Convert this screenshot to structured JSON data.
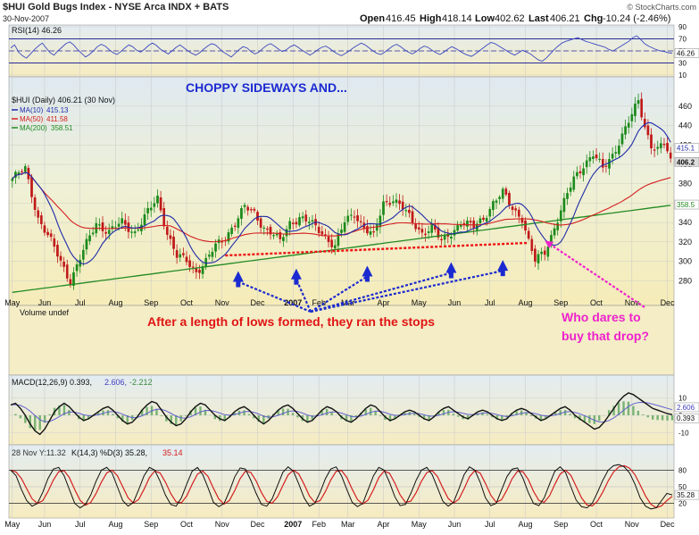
{
  "header": {
    "title": "$HUI Gold Bugs Index - NYSE Arca  INDX + BATS",
    "date": "30-Nov-2007",
    "open_label": "Open",
    "open": "416.45",
    "high_label": "High",
    "high": "418.14",
    "low_label": "Low",
    "low": "402.62",
    "last_label": "Last",
    "last": "406.21",
    "chg_label": "Chg",
    "chg": "-10.24 (-2.46%)",
    "watermark": "© StockCharts.com"
  },
  "colors": {
    "price_bg": "#f3f0c8",
    "panel_bg": "#f4f0d0",
    "ma10": "#1e2aa8",
    "ma50": "#d42020",
    "ma200": "#228b22",
    "up_candle": "#1a8a1a",
    "down_candle": "#c01818",
    "annotation_blue": "#1b2ad0",
    "annotation_red": "#e01414",
    "annotation_magenta": "#ee22cc",
    "support_line": "#ee1111"
  },
  "annotations": {
    "choppy": "CHOPPY SIDEWAYS AND...",
    "stops": "After a length of lows formed,  they ran the stops",
    "dares_line1": "Who dares to",
    "dares_line2": "buy that drop?"
  },
  "chart_data": [
    {
      "type": "line",
      "panel": "rsi",
      "label": "RSI(14) 46.26",
      "ylim": [
        10,
        90
      ],
      "yticks": [
        10,
        30,
        50,
        70,
        90
      ],
      "reference_lines": [
        30,
        70
      ],
      "last_value_tag": "46.26",
      "values": [
        55,
        60,
        48,
        42,
        38,
        45,
        52,
        58,
        63,
        55,
        47,
        43,
        50,
        56,
        62,
        65,
        60,
        52,
        46,
        40,
        44,
        50,
        57,
        61,
        58,
        52,
        47,
        44,
        49,
        55,
        60,
        57,
        51,
        48,
        53,
        59,
        63,
        59,
        53,
        49,
        45,
        50,
        56,
        60,
        55,
        50,
        46,
        43,
        47,
        53,
        58,
        62,
        60,
        54,
        48,
        44,
        40,
        46,
        52,
        57,
        55,
        49,
        45,
        48,
        54,
        59,
        62,
        58,
        53,
        49,
        52,
        57,
        60,
        56,
        51,
        47,
        43,
        47,
        52,
        56,
        58,
        54,
        49,
        45,
        42,
        46,
        50,
        55,
        59,
        63,
        60,
        55,
        50,
        46,
        44,
        48,
        53,
        58,
        61,
        57,
        52,
        48,
        45,
        49,
        54,
        58,
        56,
        51,
        47,
        44,
        48,
        53,
        57,
        54,
        50,
        46,
        43,
        41,
        45,
        50,
        55,
        60,
        64,
        62,
        58,
        54,
        50,
        46,
        43,
        47,
        51,
        48,
        45,
        40,
        35,
        33,
        38,
        45,
        52,
        58,
        63,
        66,
        68,
        70,
        72,
        69,
        66,
        64,
        62,
        60,
        58,
        56,
        52,
        50,
        54,
        58,
        62,
        66,
        72,
        75,
        69,
        62,
        58,
        55,
        52,
        50,
        49,
        47,
        46.26
      ]
    },
    {
      "type": "candlestick",
      "panel": "price",
      "label": "$HUI (Daily) 406.21 (30 Nov)",
      "ylim": [
        260,
        470
      ],
      "yticks": [
        280,
        300,
        320,
        340,
        360,
        380,
        400,
        420,
        440,
        460
      ],
      "x_labels": [
        "May",
        "Jun",
        "Jul",
        "Aug",
        "Sep",
        "Oct",
        "Nov",
        "Dec",
        "2007",
        "Feb",
        "Mar",
        "Apr",
        "May",
        "Jun",
        "Jul",
        "Aug",
        "Sep",
        "Oct",
        "Nov",
        "Dec"
      ],
      "x_label_index": [
        0,
        10,
        21,
        32,
        43,
        54,
        65,
        76,
        87,
        95,
        104,
        115,
        126,
        137,
        148,
        159,
        170,
        181,
        192,
        203
      ],
      "n_bars": 205,
      "close_anchors": [
        [
          0,
          385
        ],
        [
          4,
          395
        ],
        [
          8,
          345
        ],
        [
          12,
          320
        ],
        [
          15,
          300
        ],
        [
          18,
          280
        ],
        [
          22,
          310
        ],
        [
          26,
          340
        ],
        [
          30,
          330
        ],
        [
          34,
          340
        ],
        [
          38,
          330
        ],
        [
          42,
          350
        ],
        [
          45,
          365
        ],
        [
          48,
          330
        ],
        [
          51,
          305
        ],
        [
          54,
          300
        ],
        [
          57,
          290
        ],
        [
          60,
          300
        ],
        [
          63,
          315
        ],
        [
          66,
          325
        ],
        [
          69,
          340
        ],
        [
          72,
          355
        ],
        [
          75,
          350
        ],
        [
          78,
          335
        ],
        [
          80,
          330
        ],
        [
          83,
          320
        ],
        [
          86,
          340
        ],
        [
          89,
          345
        ],
        [
          92,
          340
        ],
        [
          96,
          330
        ],
        [
          100,
          315
        ],
        [
          103,
          340
        ],
        [
          106,
          350
        ],
        [
          109,
          335
        ],
        [
          112,
          325
        ],
        [
          115,
          360
        ],
        [
          118,
          365
        ],
        [
          121,
          355
        ],
        [
          124,
          340
        ],
        [
          127,
          330
        ],
        [
          130,
          335
        ],
        [
          133,
          320
        ],
        [
          136,
          330
        ],
        [
          139,
          340
        ],
        [
          143,
          335
        ],
        [
          146,
          345
        ],
        [
          149,
          360
        ],
        [
          152,
          370
        ],
        [
          155,
          355
        ],
        [
          158,
          345
        ],
        [
          160,
          320
        ],
        [
          162,
          300
        ],
        [
          165,
          310
        ],
        [
          168,
          335
        ],
        [
          171,
          360
        ],
        [
          174,
          385
        ],
        [
          177,
          400
        ],
        [
          180,
          410
        ],
        [
          183,
          395
        ],
        [
          186,
          410
        ],
        [
          189,
          430
        ],
        [
          192,
          450
        ],
        [
          194,
          465
        ],
        [
          196,
          440
        ],
        [
          198,
          420
        ],
        [
          200,
          415
        ],
        [
          202,
          420
        ],
        [
          204,
          406.21
        ]
      ],
      "moving_averages": [
        {
          "name": "MA(10)",
          "value": "415.13",
          "period": 10
        },
        {
          "name": "MA(50)",
          "value": "411.58",
          "period": 50
        },
        {
          "name": "MA(200)",
          "value": "358.51",
          "period": 200
        }
      ],
      "last_value_tags": [
        "415.1",
        "406.2",
        "358.5"
      ],
      "support_line": {
        "from": [
          66,
          306
        ],
        "to": [
          160,
          319
        ]
      },
      "arrow_targets_index": [
        70,
        88,
        110,
        136,
        152
      ]
    },
    {
      "type": "bar",
      "panel": "volume",
      "label": "Volume undef"
    },
    {
      "type": "line",
      "panel": "macd",
      "label": "MACD(12,26,9) 0.393, 2.606, -2.212",
      "label_parts": [
        "MACD(12,26,9) 0.393,",
        "2.606,",
        "-2.212"
      ],
      "ylim": [
        -15,
        15
      ],
      "yticks": [
        -10,
        0,
        10
      ],
      "last_value_tags": [
        "0.393",
        "2.606"
      ],
      "values": [
        6,
        7,
        4,
        0,
        -5,
        -9,
        -11,
        -8,
        -3,
        2,
        5,
        7,
        5,
        2,
        -1,
        -3,
        -2,
        0,
        2,
        4,
        5,
        3,
        0,
        -3,
        -5,
        -4,
        -1,
        3,
        6,
        8,
        7,
        3,
        -1,
        -4,
        -6,
        -5,
        -2,
        2,
        5,
        7,
        6,
        3,
        0,
        -2,
        -3,
        -1,
        2,
        4,
        5,
        3,
        0,
        -3,
        -5,
        -3,
        0,
        3,
        5,
        6,
        4,
        1,
        -2,
        -4,
        -3,
        0,
        3,
        5,
        4,
        2,
        -1,
        -3,
        -4,
        -2,
        1,
        4,
        6,
        5,
        2,
        -1,
        -3,
        -2,
        0,
        2,
        3,
        2,
        0,
        -2,
        -3,
        -1,
        2,
        4,
        5,
        3,
        1,
        -1,
        -2,
        0,
        2,
        3,
        2,
        0,
        -2,
        -3,
        -2,
        1,
        3,
        4,
        3,
        1,
        -1,
        -3,
        -2,
        0,
        2,
        4,
        5,
        3,
        0,
        -2,
        -4,
        -6,
        -8,
        -7,
        -4,
        0,
        4,
        8,
        11,
        13,
        12,
        10,
        8,
        6,
        4,
        3,
        2,
        1,
        0.393
      ]
    },
    {
      "type": "line",
      "panel": "stochastic",
      "label": "28 Nov Y:11.32  K(14,3) %D(3) 35.28, 35.14",
      "label_parts": [
        "28 Nov Y:11.32",
        "K(14,3) %D(3) 35.28,",
        "35.14"
      ],
      "ylim": [
        0,
        100
      ],
      "yticks": [
        20,
        50,
        80
      ],
      "last_value_tag": "35.28",
      "values": [
        80,
        70,
        45,
        25,
        15,
        20,
        40,
        65,
        82,
        85,
        70,
        45,
        20,
        12,
        18,
        35,
        60,
        80,
        85,
        75,
        50,
        25,
        15,
        22,
        45,
        70,
        85,
        80,
        60,
        35,
        18,
        15,
        30,
        55,
        78,
        85,
        72,
        48,
        22,
        14,
        20,
        42,
        68,
        84,
        82,
        62,
        38,
        18,
        15,
        28,
        52,
        76,
        86,
        78,
        55,
        30,
        15,
        20,
        40,
        65,
        82,
        86,
        70,
        45,
        22,
        14,
        20,
        45,
        70,
        85,
        80,
        58,
        32,
        16,
        18,
        38,
        62,
        80,
        85,
        72,
        48,
        24,
        15,
        22,
        46,
        72,
        86,
        80,
        58,
        30,
        16,
        20,
        44,
        68,
        82,
        84,
        66,
        40,
        20,
        16,
        30,
        55,
        78,
        86,
        76,
        50,
        26,
        14,
        12,
        20,
        40,
        62,
        80,
        88,
        90,
        86,
        75,
        55,
        30,
        15,
        10,
        12,
        25,
        38,
        35.28
      ]
    }
  ],
  "x_axis_labels": [
    "May",
    "Jun",
    "Jul",
    "Aug",
    "Sep",
    "Oct",
    "Nov",
    "Dec",
    "2007",
    "Feb",
    "Mar",
    "Apr",
    "May",
    "Jun",
    "Jul",
    "Aug",
    "Sep",
    "Oct",
    "Nov",
    "Dec"
  ]
}
